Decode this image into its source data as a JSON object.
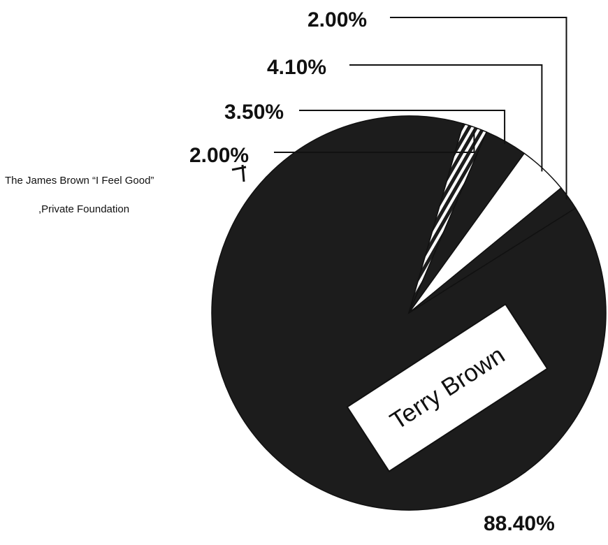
{
  "chart_data": {
    "type": "pie",
    "title": "",
    "slices": [
      {
        "name": "Terry Brown",
        "value": 88.4,
        "label": "88.40%",
        "color": "#1c1c1c",
        "pattern": "solid"
      },
      {
        "name": "The James Brown \"I Feel Good\" Private Foundation",
        "value": 2.0,
        "label": "2.00%",
        "color": "#1c1c1c",
        "pattern": "hatched"
      },
      {
        "name": "",
        "value": 3.5,
        "label": "3.50%",
        "color": "#1c1c1c",
        "pattern": "solid"
      },
      {
        "name": "",
        "value": 4.1,
        "label": "4.10%",
        "color": "#ffffff",
        "pattern": "solid"
      },
      {
        "name": "",
        "value": 2.0,
        "label": "2.00%",
        "color": "#1c1c1c",
        "pattern": "solid"
      }
    ],
    "annotation": {
      "line1": "The James Brown “I Feel Good”",
      "line2": ",Private Foundation"
    },
    "legend": "none"
  }
}
